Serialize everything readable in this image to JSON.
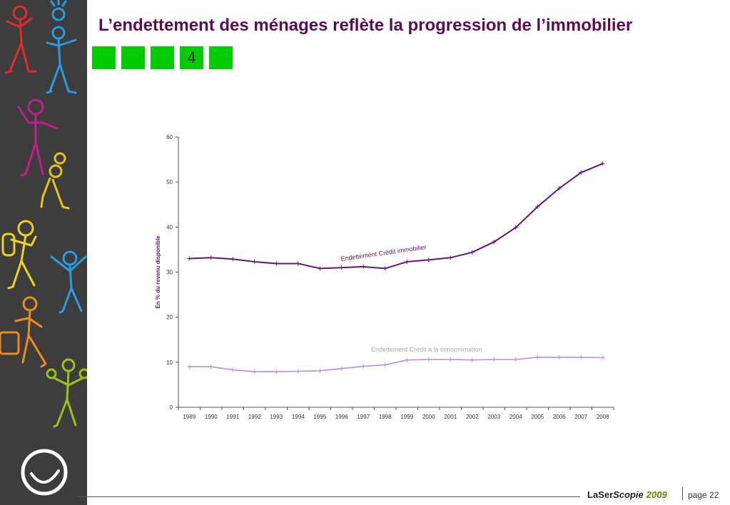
{
  "page": {
    "title": "L’endettement des ménages reflète la progression de l’immobilier",
    "nav": [
      "",
      "",
      "",
      "4",
      ""
    ]
  },
  "chart_data": {
    "type": "line",
    "categories": [
      "1989",
      "1990",
      "1991",
      "1992",
      "1993",
      "1994",
      "1995",
      "1996",
      "1997",
      "1998",
      "1999",
      "2000",
      "2001",
      "2002",
      "2003",
      "2004",
      "2005",
      "2006",
      "2007",
      "2008"
    ],
    "series": [
      {
        "name": "Endettement Crédit  immobilier",
        "color": "#6b1770",
        "values": [
          33.0,
          33.2,
          32.9,
          32.3,
          31.9,
          31.9,
          30.8,
          31.0,
          31.2,
          30.8,
          32.3,
          32.7,
          33.2,
          34.4,
          36.7,
          39.9,
          44.5,
          48.6,
          52.1,
          54.1
        ]
      },
      {
        "name": "Endettement Crédit  à la consommation",
        "color": "#b48ee6",
        "values": [
          9.0,
          9.0,
          8.3,
          7.9,
          7.9,
          8.0,
          8.1,
          8.6,
          9.1,
          9.4,
          10.5,
          10.6,
          10.6,
          10.5,
          10.6,
          10.6,
          11.1,
          11.1,
          11.1,
          11.0
        ]
      }
    ],
    "ylabel": "En % du revenu disponible",
    "ylim": [
      0,
      60
    ],
    "yticks": [
      0,
      10,
      20,
      30,
      40,
      50,
      60
    ],
    "grid": false,
    "legend": "inline labels"
  },
  "footer": {
    "brand_1": "LaSer",
    "brand_2": "Scopie",
    "brand_year": "2009",
    "page": "page 22"
  }
}
